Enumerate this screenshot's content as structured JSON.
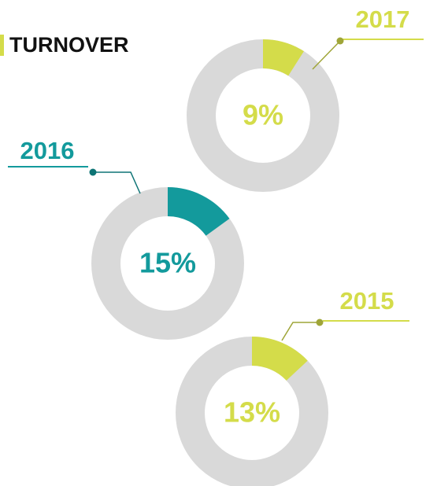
{
  "header": {
    "title": "TURNOVER"
  },
  "chart_data": [
    {
      "type": "pie",
      "title": "2017",
      "values": [
        9
      ],
      "value_labels": [
        "9%"
      ],
      "color": "#d4dc4a"
    },
    {
      "type": "pie",
      "title": "2016",
      "values": [
        15
      ],
      "value_labels": [
        "15%"
      ],
      "color": "#139a9c"
    },
    {
      "type": "pie",
      "title": "2015",
      "values": [
        13
      ],
      "value_labels": [
        "13%"
      ],
      "color": "#d4dc4a"
    }
  ]
}
